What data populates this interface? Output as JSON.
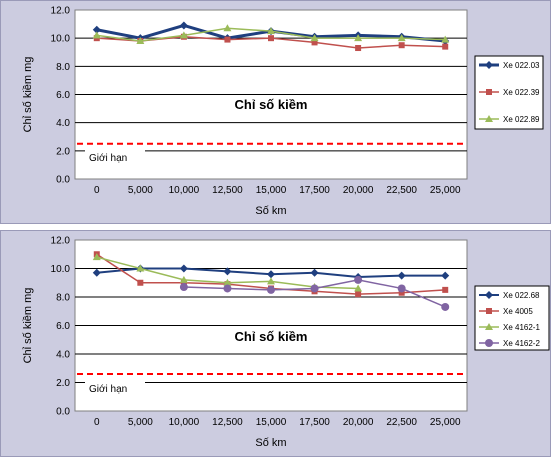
{
  "chart_data": [
    {
      "type": "line",
      "title": "",
      "inner_label": "Chỉ số kiềm",
      "xlabel": "Số km",
      "ylabel": "Chỉ số kiềm  mg",
      "categories": [
        "0",
        "5,000",
        "10,000",
        "12,500",
        "15,000",
        "17,500",
        "20,000",
        "22,500",
        "25,000"
      ],
      "ylim": [
        0,
        12
      ],
      "yticks": [
        "0.0",
        "2.0",
        "4.0",
        "6.0",
        "8.0",
        "10.0",
        "12.0"
      ],
      "limit": {
        "value": 2.5,
        "label": "Giới hạn",
        "color": "#ff0000"
      },
      "legend_position": "right",
      "series": [
        {
          "name": "Xe 022.03",
          "color": "#1f3f7f",
          "marker": "diamond",
          "width": 3,
          "values": [
            10.6,
            10.0,
            10.9,
            10.0,
            10.5,
            10.1,
            10.2,
            10.1,
            9.8
          ]
        },
        {
          "name": "Xe 022.39",
          "color": "#c0504d",
          "marker": "square",
          "width": 1.5,
          "values": [
            10.0,
            9.8,
            10.1,
            9.9,
            10.0,
            9.7,
            9.3,
            9.5,
            9.4
          ]
        },
        {
          "name": "Xe 022.89",
          "color": "#9bbb59",
          "marker": "triangle",
          "width": 1.5,
          "values": [
            10.2,
            9.8,
            10.2,
            10.7,
            10.5,
            10.0,
            10.0,
            10.0,
            9.9
          ]
        }
      ]
    },
    {
      "type": "line",
      "title": "",
      "inner_label": "Chỉ số kiềm",
      "xlabel": "Số km",
      "ylabel": "Chỉ số kiềm  mg",
      "categories": [
        "0",
        "5,000",
        "10,000",
        "12,500",
        "15,000",
        "17,500",
        "20,000",
        "22,500",
        "25,000"
      ],
      "ylim": [
        0,
        12
      ],
      "yticks": [
        "0.0",
        "2.0",
        "4.0",
        "6.0",
        "8.0",
        "10.0",
        "12.0"
      ],
      "limit": {
        "value": 2.6,
        "label": "Giới hạn",
        "color": "#ff0000"
      },
      "legend_position": "right",
      "series": [
        {
          "name": "Xe 022.68",
          "color": "#1f3f7f",
          "marker": "diamond",
          "width": 2,
          "values": [
            9.7,
            10.0,
            10.0,
            9.8,
            9.6,
            9.7,
            9.4,
            9.5,
            9.5
          ]
        },
        {
          "name": "Xe 4005",
          "color": "#c0504d",
          "marker": "square",
          "width": 1.5,
          "values": [
            11.0,
            9.0,
            9.0,
            8.9,
            8.6,
            8.4,
            8.2,
            8.3,
            8.5
          ]
        },
        {
          "name": "Xe 4162-1",
          "color": "#9bbb59",
          "marker": "triangle",
          "width": 1.5,
          "values": [
            10.8,
            10.0,
            9.2,
            9.0,
            9.1,
            8.7,
            8.6,
            null,
            null
          ]
        },
        {
          "name": "Xe 4162-2",
          "color": "#8064a2",
          "marker": "circle",
          "width": 1.5,
          "values": [
            null,
            null,
            8.7,
            8.6,
            8.5,
            8.6,
            9.2,
            8.6,
            7.3
          ]
        }
      ]
    }
  ]
}
